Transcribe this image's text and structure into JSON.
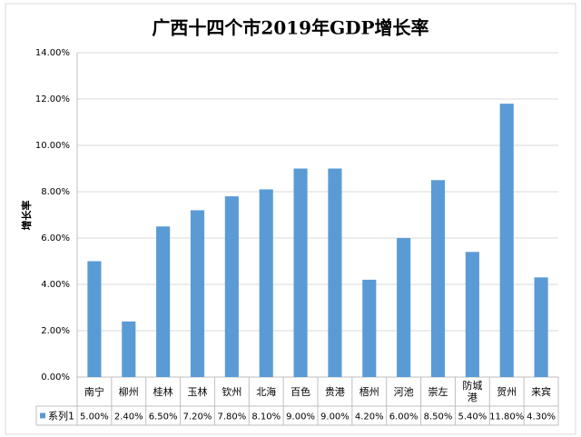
{
  "chart_data": {
    "type": "bar",
    "title": "广西十四个市2019年GDP增长率",
    "y_label": "增长率",
    "categories": [
      "南宁",
      "柳州",
      "桂林",
      "玉林",
      "钦州",
      "北海",
      "百色",
      "贵港",
      "梧州",
      "河池",
      "崇左",
      "防城港",
      "贺州",
      "来宾"
    ],
    "series": [
      {
        "name": "系列1",
        "color": "#5b9bd5",
        "values": [
          5.0,
          2.4,
          6.5,
          7.2,
          7.8,
          8.1,
          9.0,
          9.0,
          4.2,
          6.0,
          8.5,
          5.4,
          11.8,
          4.3
        ],
        "value_labels": [
          "5.00%",
          "2.40%",
          "6.50%",
          "7.20%",
          "7.80%",
          "8.10%",
          "9.00%",
          "9.00%",
          "4.20%",
          "6.00%",
          "8.50%",
          "5.40%",
          "11.80%",
          "4.30%"
        ]
      }
    ],
    "ylim": [
      0,
      14
    ],
    "yticks": [
      {
        "value": 0,
        "label": "0.00%"
      },
      {
        "value": 2,
        "label": "2.00%"
      },
      {
        "value": 4,
        "label": "4.00%"
      },
      {
        "value": 6,
        "label": "6.00%"
      },
      {
        "value": 8,
        "label": "8.00%"
      },
      {
        "value": 10,
        "label": "10.00%"
      },
      {
        "value": 12,
        "label": "12.00%"
      },
      {
        "value": 14,
        "label": "14.00%"
      }
    ],
    "grid": true
  }
}
